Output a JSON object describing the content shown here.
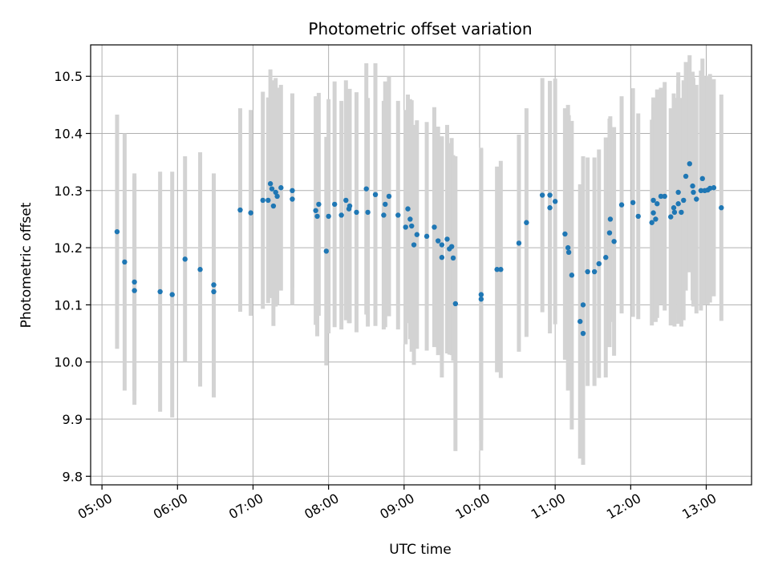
{
  "chart_data": {
    "type": "scatter",
    "title": "Photometric offset variation",
    "xlabel": "UTC time",
    "ylabel": "Photometric offset",
    "x_unit": "hours UTC",
    "xlim": [
      4.85,
      13.6
    ],
    "ylim": [
      9.785,
      10.555
    ],
    "x_ticks": [
      {
        "value": 5,
        "label": "05:00"
      },
      {
        "value": 6,
        "label": "06:00"
      },
      {
        "value": 7,
        "label": "07:00"
      },
      {
        "value": 8,
        "label": "08:00"
      },
      {
        "value": 9,
        "label": "09:00"
      },
      {
        "value": 10,
        "label": "10:00"
      },
      {
        "value": 11,
        "label": "11:00"
      },
      {
        "value": 12,
        "label": "12:00"
      },
      {
        "value": 13,
        "label": "13:00"
      }
    ],
    "y_ticks": [
      {
        "value": 9.8,
        "label": "9.8"
      },
      {
        "value": 9.9,
        "label": "9.9"
      },
      {
        "value": 10.0,
        "label": "10.0"
      },
      {
        "value": 10.1,
        "label": "10.1"
      },
      {
        "value": 10.2,
        "label": "10.2"
      },
      {
        "value": 10.3,
        "label": "10.3"
      },
      {
        "value": 10.4,
        "label": "10.4"
      },
      {
        "value": 10.5,
        "label": "10.5"
      }
    ],
    "grid": true,
    "point_color": "#1f77b4",
    "errorbar_color": "#d3d3d3",
    "points": [
      [
        5.2,
        10.228,
        0.205
      ],
      [
        5.3,
        10.175,
        0.225
      ],
      [
        5.43,
        10.14,
        0.19
      ],
      [
        5.43,
        10.125,
        0.2
      ],
      [
        5.77,
        10.123,
        0.21
      ],
      [
        5.93,
        10.118,
        0.215
      ],
      [
        6.1,
        10.18,
        0.18
      ],
      [
        6.3,
        10.162,
        0.205
      ],
      [
        6.48,
        10.135,
        0.195
      ],
      [
        6.48,
        10.123,
        0.185
      ],
      [
        6.83,
        10.266,
        0.178
      ],
      [
        6.97,
        10.261,
        0.18
      ],
      [
        7.13,
        10.283,
        0.19
      ],
      [
        7.2,
        10.283,
        0.18
      ],
      [
        7.23,
        10.312,
        0.2
      ],
      [
        7.25,
        10.303,
        0.19
      ],
      [
        7.27,
        10.273,
        0.21
      ],
      [
        7.3,
        10.297,
        0.2
      ],
      [
        7.32,
        10.29,
        0.19
      ],
      [
        7.37,
        10.305,
        0.18
      ],
      [
        7.52,
        10.3,
        0.17
      ],
      [
        7.52,
        10.285,
        0.185
      ],
      [
        7.83,
        10.265,
        0.2
      ],
      [
        7.85,
        10.255,
        0.21
      ],
      [
        7.87,
        10.276,
        0.195
      ],
      [
        7.97,
        10.194,
        0.2
      ],
      [
        8.0,
        10.255,
        0.205
      ],
      [
        8.08,
        10.276,
        0.215
      ],
      [
        8.17,
        10.257,
        0.2
      ],
      [
        8.23,
        10.283,
        0.21
      ],
      [
        8.27,
        10.268,
        0.2
      ],
      [
        8.28,
        10.273,
        0.205
      ],
      [
        8.37,
        10.262,
        0.21
      ],
      [
        8.5,
        10.303,
        0.22
      ],
      [
        8.52,
        10.262,
        0.2
      ],
      [
        8.62,
        10.293,
        0.23
      ],
      [
        8.73,
        10.257,
        0.2
      ],
      [
        8.75,
        10.276,
        0.215
      ],
      [
        8.8,
        10.29,
        0.21
      ],
      [
        8.92,
        10.257,
        0.2
      ],
      [
        9.02,
        10.236,
        0.205
      ],
      [
        9.05,
        10.268,
        0.2
      ],
      [
        9.08,
        10.25,
        0.21
      ],
      [
        9.1,
        10.238,
        0.22
      ],
      [
        9.13,
        10.205,
        0.21
      ],
      [
        9.17,
        10.223,
        0.2
      ],
      [
        9.3,
        10.22,
        0.2
      ],
      [
        9.4,
        10.236,
        0.21
      ],
      [
        9.45,
        10.212,
        0.2
      ],
      [
        9.5,
        10.183,
        0.21
      ],
      [
        9.5,
        10.205,
        0.19
      ],
      [
        9.57,
        10.215,
        0.2
      ],
      [
        9.6,
        10.198,
        0.185
      ],
      [
        9.63,
        10.202,
        0.19
      ],
      [
        9.65,
        10.182,
        0.18
      ],
      [
        9.68,
        10.102,
        0.258
      ],
      [
        10.02,
        10.118,
        0.255
      ],
      [
        10.02,
        10.11,
        0.265
      ],
      [
        10.23,
        10.162,
        0.18
      ],
      [
        10.28,
        10.162,
        0.19
      ],
      [
        10.52,
        10.208,
        0.19
      ],
      [
        10.62,
        10.244,
        0.2
      ],
      [
        10.83,
        10.292,
        0.205
      ],
      [
        10.93,
        10.27,
        0.22
      ],
      [
        10.93,
        10.292,
        0.2
      ],
      [
        11.0,
        10.281,
        0.215
      ],
      [
        11.13,
        10.224,
        0.22
      ],
      [
        11.17,
        10.2,
        0.25
      ],
      [
        11.18,
        10.192,
        0.24
      ],
      [
        11.22,
        10.152,
        0.27
      ],
      [
        11.33,
        10.071,
        0.24
      ],
      [
        11.37,
        10.1,
        0.26
      ],
      [
        11.37,
        10.05,
        0.23
      ],
      [
        11.43,
        10.158,
        0.2
      ],
      [
        11.52,
        10.158,
        0.2
      ],
      [
        11.58,
        10.172,
        0.2
      ],
      [
        11.67,
        10.183,
        0.21
      ],
      [
        11.72,
        10.226,
        0.2
      ],
      [
        11.73,
        10.25,
        0.18
      ],
      [
        11.78,
        10.211,
        0.2
      ],
      [
        11.88,
        10.275,
        0.19
      ],
      [
        12.03,
        10.279,
        0.2
      ],
      [
        12.1,
        10.255,
        0.18
      ],
      [
        12.28,
        10.244,
        0.18
      ],
      [
        12.3,
        10.283,
        0.18
      ],
      [
        12.3,
        10.261,
        0.19
      ],
      [
        12.33,
        10.25,
        0.18
      ],
      [
        12.35,
        10.277,
        0.2
      ],
      [
        12.4,
        10.29,
        0.19
      ],
      [
        12.45,
        10.29,
        0.2
      ],
      [
        12.53,
        10.254,
        0.19
      ],
      [
        12.57,
        10.27,
        0.2
      ],
      [
        12.58,
        10.262,
        0.2
      ],
      [
        12.63,
        10.297,
        0.21
      ],
      [
        12.63,
        10.277,
        0.21
      ],
      [
        12.67,
        10.262,
        0.2
      ],
      [
        12.7,
        10.283,
        0.21
      ],
      [
        12.73,
        10.325,
        0.2
      ],
      [
        12.78,
        10.347,
        0.19
      ],
      [
        12.82,
        10.308,
        0.2
      ],
      [
        12.83,
        10.297,
        0.2
      ],
      [
        12.87,
        10.285,
        0.2
      ],
      [
        12.93,
        10.3,
        0.21
      ],
      [
        12.95,
        10.321,
        0.21
      ],
      [
        12.98,
        10.3,
        0.2
      ],
      [
        13.02,
        10.301,
        0.2
      ],
      [
        13.05,
        10.304,
        0.2
      ],
      [
        13.1,
        10.305,
        0.19
      ],
      [
        13.2,
        10.27,
        0.198
      ]
    ]
  }
}
